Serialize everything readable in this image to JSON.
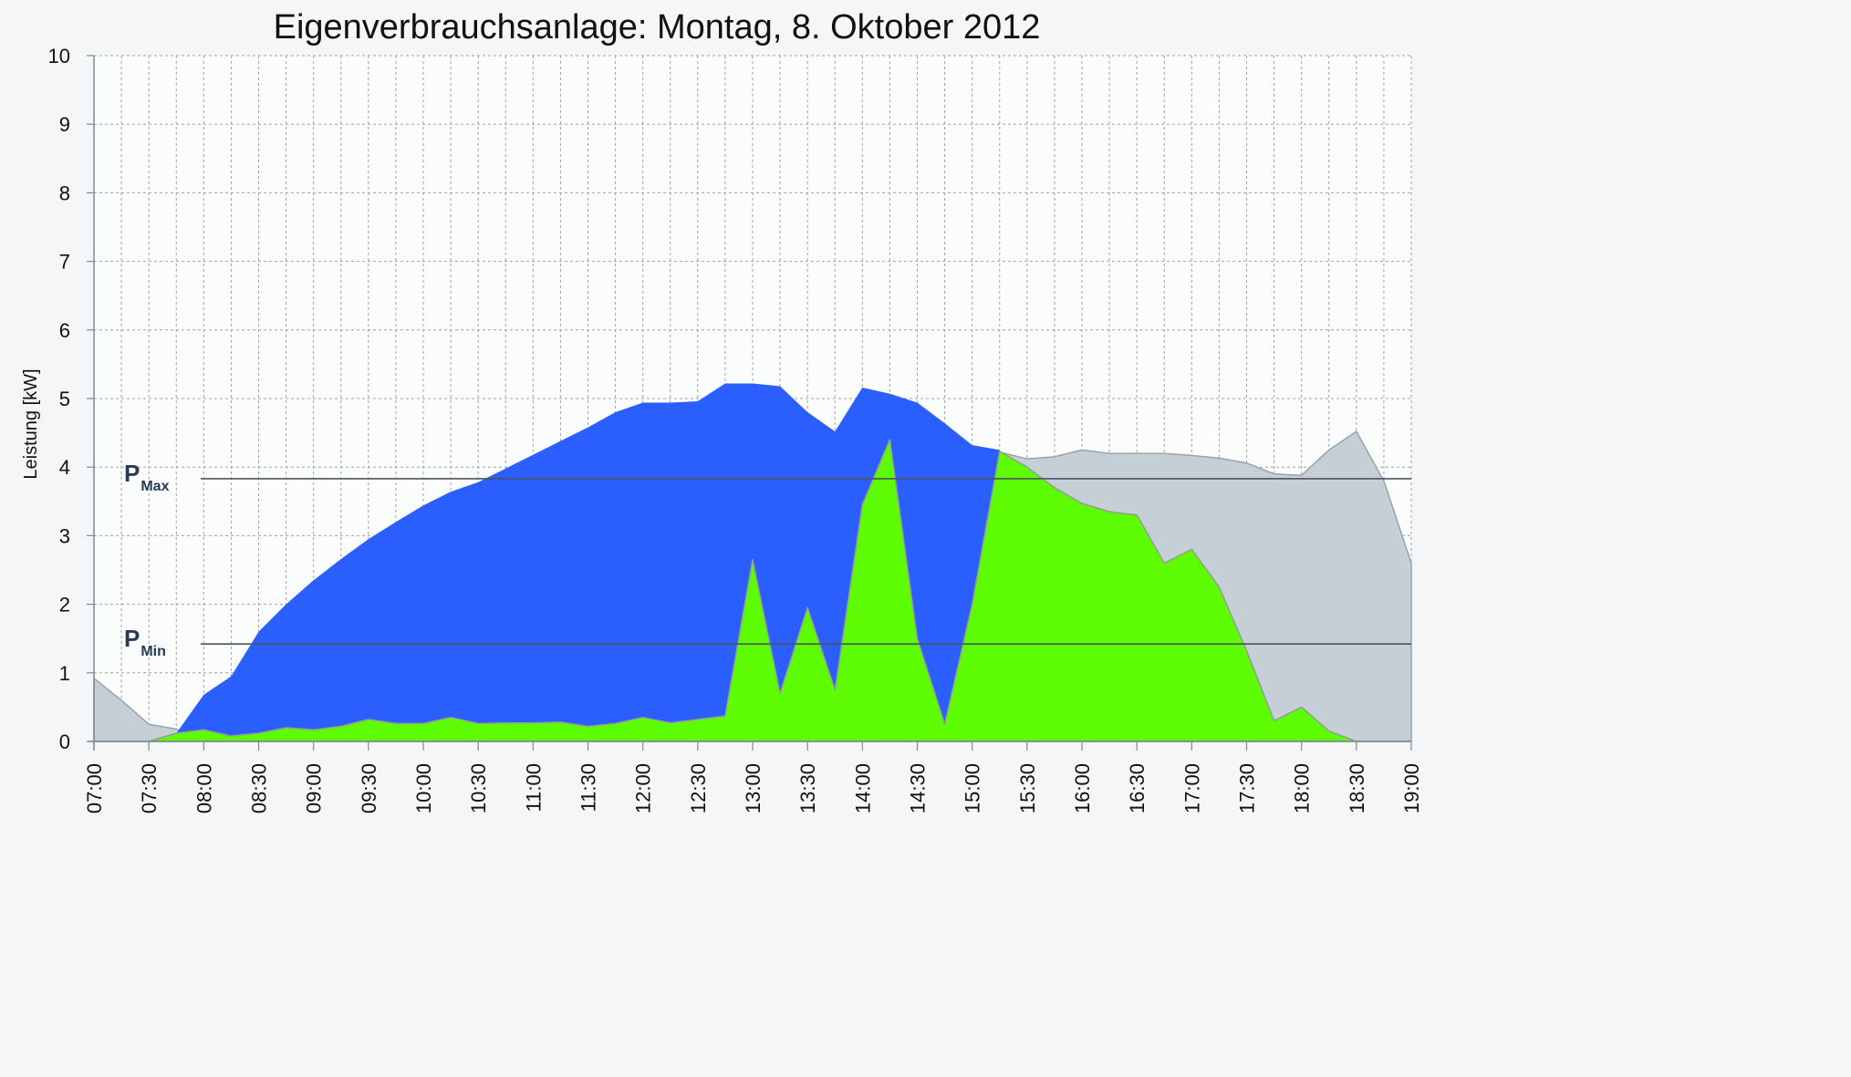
{
  "chart_data": {
    "type": "area",
    "title": "Eigenverbrauchsanlage: Montag, 8. Oktober 2012",
    "xlabel": "",
    "ylabel": "Leistung [kW]",
    "ylim": [
      0,
      10
    ],
    "yticks": [
      "0",
      "1",
      "2",
      "3",
      "4",
      "5",
      "6",
      "7",
      "8",
      "9",
      "10"
    ],
    "x_tick_labels": [
      "07:00",
      "07:30",
      "08:00",
      "08:30",
      "09:00",
      "09:30",
      "10:00",
      "10:30",
      "11:00",
      "11:30",
      "12:00",
      "12:30",
      "13:00",
      "13:30",
      "14:00",
      "14:30",
      "15:00",
      "15:30",
      "16:00",
      "16:30",
      "17:00",
      "17:30",
      "18:00",
      "18:30",
      "19:00"
    ],
    "grid": true,
    "reference_lines": [
      {
        "label": "P",
        "sub": "Max",
        "value": 3.83
      },
      {
        "label": "P",
        "sub": "Min",
        "value": 1.42
      }
    ],
    "colors": {
      "grey": "#c6cfd5",
      "blue": "#2b5ffd",
      "green": "#5efc02",
      "grid": "#9aa4ab"
    },
    "series": [
      {
        "key": "grey",
        "x": [
          "07:00",
          "07:15",
          "07:30",
          "07:45",
          "08:00",
          "08:15",
          "08:30",
          "08:45",
          "09:00",
          "09:15",
          "09:30",
          "09:45",
          "10:00",
          "10:15",
          "10:30",
          "10:45",
          "11:00",
          "11:15",
          "11:30",
          "11:45",
          "12:00",
          "12:15",
          "12:30",
          "12:45",
          "13:00",
          "13:15",
          "13:30",
          "13:45",
          "14:00",
          "14:15",
          "14:30",
          "14:45",
          "15:00",
          "15:15",
          "15:30",
          "15:45",
          "16:00",
          "16:15",
          "16:30",
          "16:45",
          "17:00",
          "17:15",
          "17:30",
          "17:45",
          "18:00",
          "18:15",
          "18:30",
          "18:45",
          "19:00"
        ],
        "y": [
          0.92,
          0.6,
          0.25,
          0.18,
          0,
          0,
          0,
          0,
          0,
          0,
          0,
          0,
          0,
          0,
          0,
          0,
          0,
          0,
          0,
          0,
          0,
          0,
          0,
          0,
          0,
          0,
          0,
          0,
          0,
          0,
          0,
          0,
          0,
          4.22,
          4.12,
          4.15,
          4.25,
          4.2,
          4.2,
          4.2,
          4.17,
          4.13,
          4.06,
          3.9,
          3.88,
          4.25,
          4.52,
          3.8,
          2.6
        ]
      },
      {
        "key": "blue",
        "x": [
          "07:00",
          "07:15",
          "07:30",
          "07:45",
          "08:00",
          "08:15",
          "08:30",
          "08:45",
          "09:00",
          "09:15",
          "09:30",
          "09:45",
          "10:00",
          "10:15",
          "10:30",
          "10:45",
          "11:00",
          "11:15",
          "11:30",
          "11:45",
          "12:00",
          "12:15",
          "12:30",
          "12:45",
          "13:00",
          "13:15",
          "13:30",
          "13:45",
          "14:00",
          "14:15",
          "14:30",
          "14:45",
          "15:00",
          "15:15",
          "15:30",
          "15:45",
          "16:00",
          "16:15",
          "16:30",
          "16:45",
          "17:00",
          "17:15",
          "17:30",
          "17:45",
          "18:00",
          "18:15",
          "18:30",
          "18:45",
          "19:00"
        ],
        "y": [
          0,
          0,
          0,
          0.12,
          0.68,
          0.95,
          1.6,
          2.0,
          2.35,
          2.66,
          2.95,
          3.2,
          3.44,
          3.64,
          3.78,
          3.98,
          4.18,
          4.38,
          4.58,
          4.8,
          4.94,
          4.94,
          4.96,
          5.22,
          5.22,
          5.18,
          4.8,
          4.52,
          5.16,
          5.07,
          4.94,
          4.64,
          4.32,
          4.25,
          0,
          0,
          0,
          0,
          0,
          0,
          0,
          0,
          0,
          0,
          0,
          0,
          0,
          0,
          0
        ]
      },
      {
        "key": "green",
        "x": [
          "07:00",
          "07:15",
          "07:30",
          "07:45",
          "08:00",
          "08:15",
          "08:30",
          "08:45",
          "09:00",
          "09:15",
          "09:30",
          "09:45",
          "10:00",
          "10:15",
          "10:30",
          "10:45",
          "11:00",
          "11:15",
          "11:30",
          "11:45",
          "12:00",
          "12:15",
          "12:30",
          "12:45",
          "13:00",
          "13:15",
          "13:30",
          "13:45",
          "14:00",
          "14:15",
          "14:30",
          "14:45",
          "15:00",
          "15:15",
          "15:30",
          "15:45",
          "16:00",
          "16:15",
          "16:30",
          "16:45",
          "17:00",
          "17:15",
          "17:30",
          "17:45",
          "18:00",
          "18:15",
          "18:30",
          "18:45",
          "19:00"
        ],
        "y": [
          0,
          0,
          0,
          0.12,
          0.17,
          0.08,
          0.12,
          0.2,
          0.17,
          0.22,
          0.32,
          0.26,
          0.26,
          0.35,
          0.26,
          0.27,
          0.27,
          0.28,
          0.22,
          0.26,
          0.35,
          0.27,
          0.32,
          0.37,
          2.65,
          0.7,
          1.95,
          0.75,
          3.45,
          4.4,
          1.5,
          0.25,
          2.0,
          4.23,
          4.0,
          3.7,
          3.47,
          3.35,
          3.3,
          2.6,
          2.8,
          2.25,
          1.32,
          0.3,
          0.5,
          0.15,
          0,
          0,
          0
        ]
      }
    ]
  }
}
